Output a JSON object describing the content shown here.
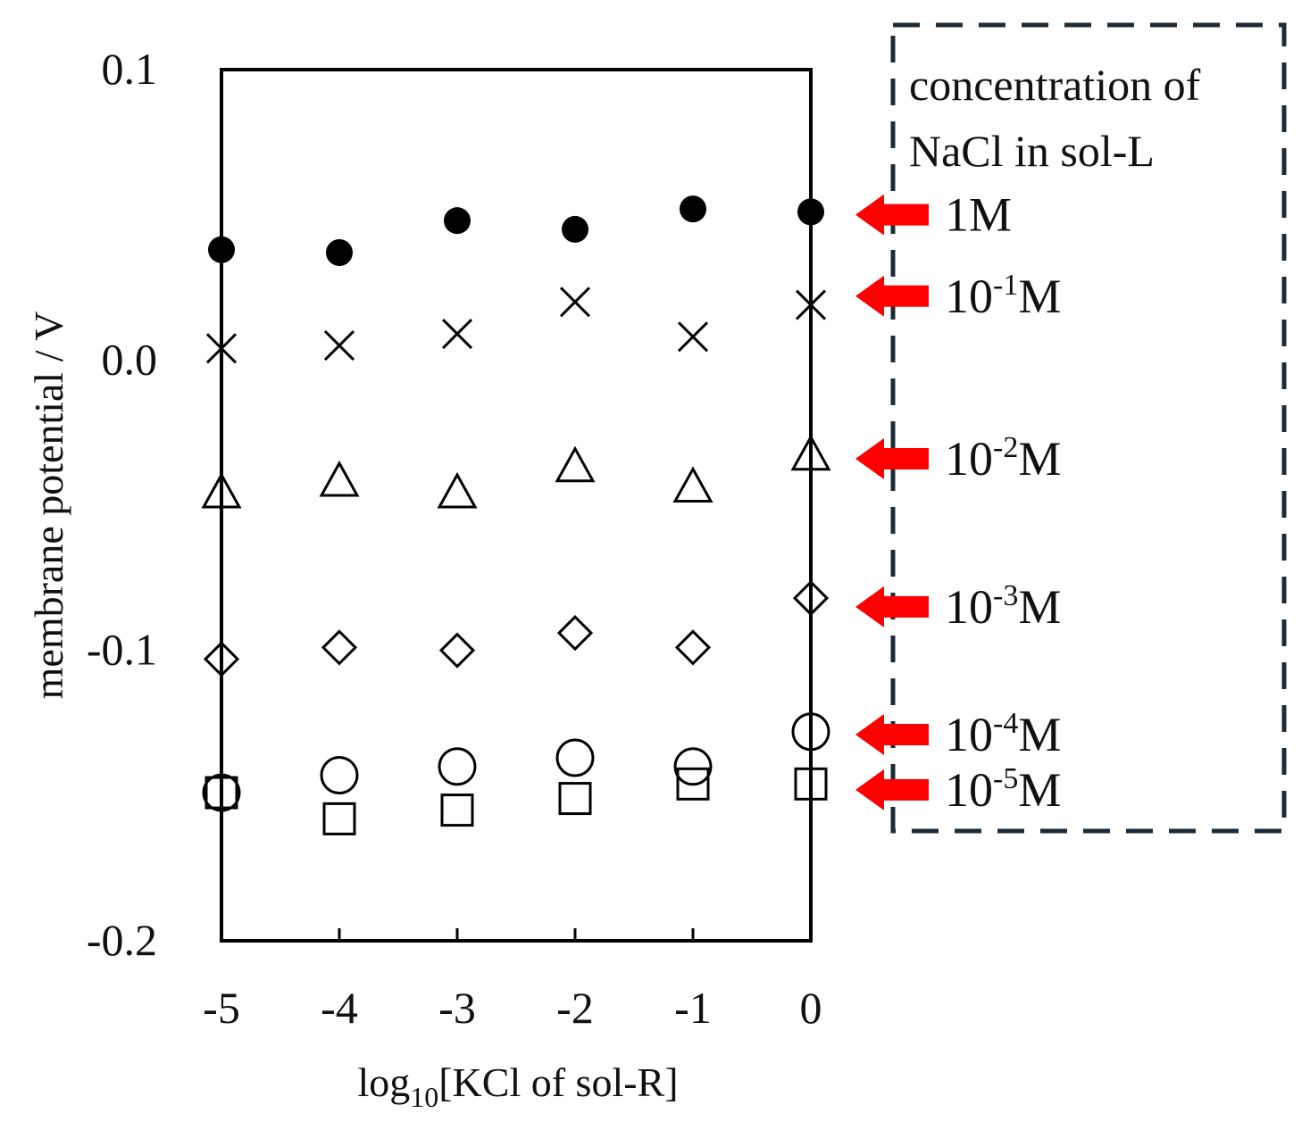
{
  "chart_data": {
    "type": "scatter",
    "xlabel": {
      "prefix": "log",
      "subscript": "10",
      "suffix": "[KCl of sol-R]"
    },
    "ylabel": "membrane potential / V",
    "xlim": [
      -5,
      0
    ],
    "ylim": [
      -0.2,
      0.1
    ],
    "x_ticks": [
      {
        "value": -5,
        "label": "-5"
      },
      {
        "value": -4,
        "label": "-4"
      },
      {
        "value": -3,
        "label": "-3"
      },
      {
        "value": -2,
        "label": "-2"
      },
      {
        "value": -1,
        "label": "-1"
      },
      {
        "value": 0,
        "label": "0"
      }
    ],
    "y_ticks": [
      {
        "value": 0.1,
        "label": "0.1"
      },
      {
        "value": 0.0,
        "label": "0.0"
      },
      {
        "value": -0.1,
        "label": "-0.1"
      },
      {
        "value": -0.2,
        "label": "-0.2"
      }
    ],
    "grid": false,
    "legend": {
      "title_lines": [
        "concentration of",
        "NaCl in sol-L"
      ],
      "placement": "right",
      "border": "dashed",
      "arrow_color": "#ff0000",
      "border_color": "#1c2b36"
    },
    "x": [
      -5,
      -4,
      -3,
      -2,
      -1,
      0
    ],
    "series": [
      {
        "label_base": "1",
        "label_exp": "",
        "label_unit": "M",
        "marker": "filled-circle",
        "values": [
          0.038,
          0.037,
          0.048,
          0.045,
          0.052,
          0.051
        ],
        "label_at": 0.05
      },
      {
        "label_base": "10",
        "label_exp": "-1",
        "label_unit": "M",
        "marker": "cross",
        "values": [
          0.004,
          0.005,
          0.009,
          0.02,
          0.008,
          0.019
        ],
        "label_at": 0.022
      },
      {
        "label_base": "10",
        "label_exp": "-2",
        "label_unit": "M",
        "marker": "triangle",
        "values": [
          -0.046,
          -0.042,
          -0.046,
          -0.037,
          -0.044,
          -0.033
        ],
        "label_at": -0.034
      },
      {
        "label_base": "10",
        "label_exp": "-3",
        "label_unit": "M",
        "marker": "diamond",
        "values": [
          -0.103,
          -0.099,
          -0.1,
          -0.094,
          -0.099,
          -0.082
        ],
        "label_at": -0.085
      },
      {
        "label_base": "10",
        "label_exp": "-4",
        "label_unit": "M",
        "marker": "circle",
        "values": [
          -0.149,
          -0.143,
          -0.14,
          -0.137,
          -0.14,
          -0.128
        ],
        "label_at": -0.129
      },
      {
        "label_base": "10",
        "label_exp": "-5",
        "label_unit": "M",
        "marker": "square",
        "values": [
          -0.149,
          -0.158,
          -0.155,
          -0.151,
          -0.146,
          -0.146
        ],
        "label_at": -0.148
      }
    ]
  }
}
